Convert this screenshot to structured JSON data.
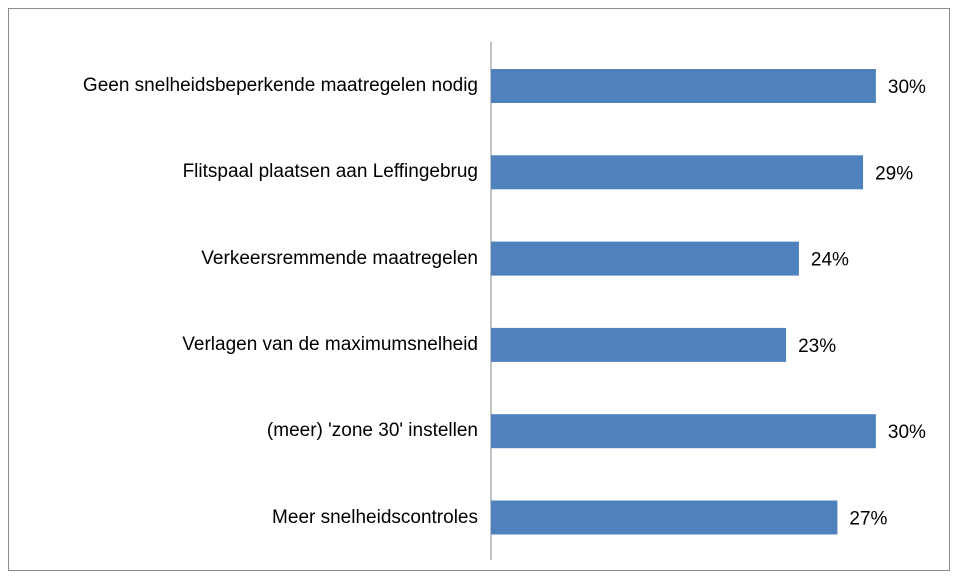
{
  "chart_data": {
    "type": "bar",
    "orientation": "horizontal",
    "categories": [
      "Geen snelheidsbeperkende maatregelen nodig",
      "Flitspaal plaatsen aan Leffingebrug",
      "Verkeersremmende maatregelen",
      "Verlagen van de maximumsnelheid",
      "(meer) 'zone 30' instellen",
      "Meer snelheidscontroles"
    ],
    "values": [
      30,
      29,
      24,
      23,
      30,
      27
    ],
    "value_labels": [
      "30%",
      "29%",
      "24%",
      "23%",
      "30%",
      "27%"
    ],
    "color": "#4f81bd"
  }
}
